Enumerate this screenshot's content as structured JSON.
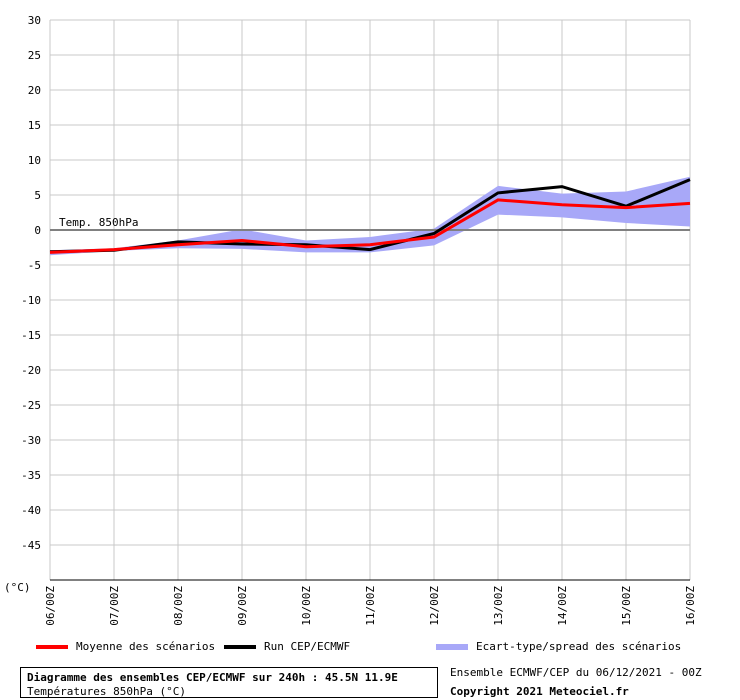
{
  "colors": {
    "mean": "#ff0000",
    "run": "#000000",
    "spread": "#a8a8f8",
    "grid": "#c8c8c8",
    "zero_line": "#808080"
  },
  "chart_data": {
    "type": "line",
    "title": "Diagramme des ensembles CEP/ECMWF sur 240h : 45.5N 11.9E",
    "subtitle": "Températures 850hPa (°C)",
    "annotation": "Temp. 850hPa",
    "y_unit_label": "(°C)",
    "ylim": [
      -50,
      30
    ],
    "yticks": [
      30,
      25,
      20,
      15,
      10,
      5,
      0,
      -5,
      -10,
      -15,
      -20,
      -25,
      -30,
      -35,
      -40,
      -45
    ],
    "grid": true,
    "categories": [
      "06/00Z",
      "07/00Z",
      "08/00Z",
      "09/00Z",
      "10/00Z",
      "11/00Z",
      "12/00Z",
      "13/00Z",
      "14/00Z",
      "15/00Z",
      "16/00Z"
    ],
    "series": [
      {
        "name": "Moyenne des scénarios",
        "values": [
          -3.2,
          -2.8,
          -2.1,
          -1.5,
          -2.4,
          -2.1,
          -1.0,
          4.3,
          3.6,
          3.2,
          3.8
        ]
      },
      {
        "name": "Run CEP/ECMWF",
        "values": [
          -3.1,
          -2.9,
          -1.7,
          -2.0,
          -2.1,
          -2.8,
          -0.5,
          5.3,
          6.2,
          3.4,
          7.2
        ]
      }
    ],
    "spread": {
      "name": "Ecart-type/spread des scénarios",
      "upper": [
        -2.9,
        -2.6,
        -1.5,
        0.1,
        -1.5,
        -1.0,
        0.2,
        6.3,
        5.2,
        5.5,
        7.6
      ],
      "lower": [
        -3.6,
        -3.0,
        -2.6,
        -2.7,
        -3.2,
        -3.2,
        -2.2,
        2.2,
        1.8,
        1.0,
        0.5
      ]
    },
    "legend_position": "bottom"
  },
  "footer": {
    "run_info": "Ensemble ECMWF/CEP du 06/12/2021 - 00Z",
    "copyright": "Copyright 2021 Meteociel.fr"
  }
}
